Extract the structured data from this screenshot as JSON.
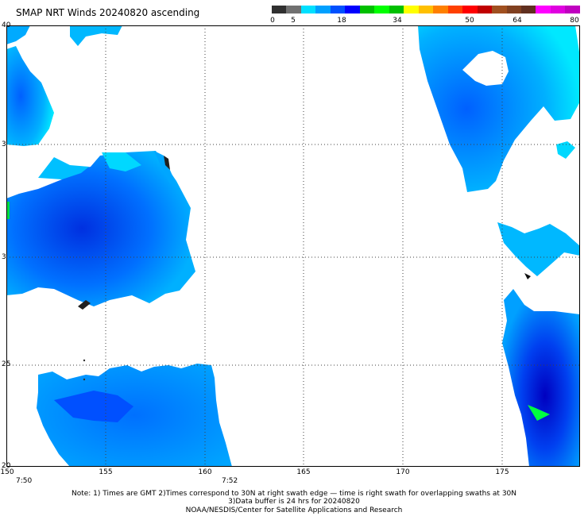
{
  "title": "SMAP NRT Winds 20240820 ascending",
  "colorbar": {
    "labels": [
      "0",
      "5",
      "18",
      "34",
      "50",
      "64",
      "80"
    ],
    "colors": [
      "#303030",
      "#707070",
      "#00e0ff",
      "#00a0ff",
      "#0050ff",
      "#0000ff",
      "#00c000",
      "#00ff00",
      "#00c000",
      "#ffff00",
      "#ffc000",
      "#ff8000",
      "#ff4000",
      "#ff0000",
      "#c00000",
      "#a05020",
      "#804020",
      "#603020",
      "#ff00ff",
      "#e000e0",
      "#c000c0"
    ]
  },
  "map": {
    "lat_labels": [
      "40",
      "3",
      "3",
      "25",
      "20"
    ],
    "lon_labels": [
      "150",
      "155",
      "160",
      "165",
      "170",
      "175"
    ],
    "time_labels": [
      "7:50",
      "7:52"
    ]
  },
  "notes": {
    "line1": "Note: 1) Times are GMT 2)Times correspond to 30N at right swath edge — time is right swath for overlapping swaths at 30N",
    "line2": "3)Data buffer is 24 hrs for 20240820",
    "line3": "NOAA/NESDIS/Center for Satellite Applications and Research"
  }
}
